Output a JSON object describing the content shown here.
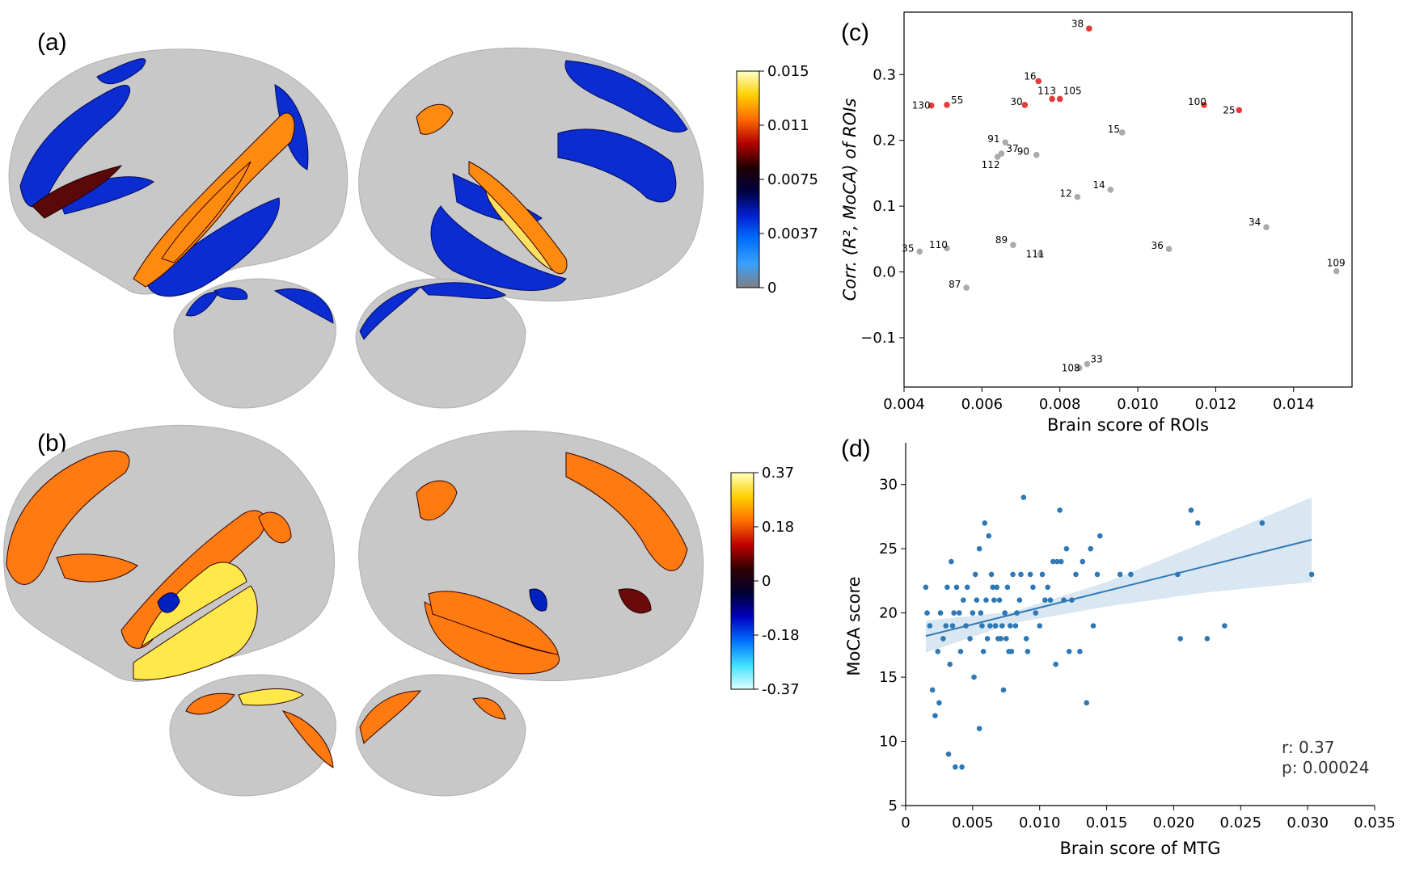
{
  "panels": {
    "a": "(a)",
    "b": "(b)",
    "c": "(c)",
    "d": "(d)"
  },
  "colorbar_a": {
    "ticks": [
      "0.015",
      "0.011",
      "0.0075",
      "0.0037",
      "0"
    ],
    "colors": [
      "#ffffcc",
      "#ffd000",
      "#ff6a00",
      "#b40000",
      "#200000",
      "#000040",
      "#0020d0",
      "#0070ff",
      "#3aa0ff",
      "#808080"
    ]
  },
  "colorbar_b": {
    "ticks": [
      "0.37",
      "0.18",
      "0",
      "-0.18",
      "-0.37"
    ],
    "colors": [
      "#ffffc0",
      "#ffd000",
      "#ff7000",
      "#c00000",
      "#300000",
      "#000030",
      "#0000c0",
      "#0070ff",
      "#40e0ff",
      "#e0ffff"
    ]
  },
  "brain_colors": {
    "surface": "#c8c8c8",
    "a_cool": "#0a2cd0",
    "a_hot": "#ff8a10",
    "b_hot": "#ff7a10",
    "b_bright": "#ffe84a",
    "b_cool": "#0020c0"
  },
  "chart_data": [
    {
      "id": "c",
      "type": "scatter",
      "xlabel": "Brain score of ROIs",
      "ylabel": "Corr. (R², MoCA) of ROIs",
      "xlim": [
        0.004,
        0.0155
      ],
      "ylim": [
        -0.175,
        0.395
      ],
      "xticks": [
        "0.004",
        "0.006",
        "0.008",
        "0.010",
        "0.012",
        "0.014"
      ],
      "xtick_values": [
        0.004,
        0.006,
        0.008,
        0.01,
        0.012,
        0.014
      ],
      "yticks": [
        "−0.1",
        "0.0",
        "0.1",
        "0.2",
        "0.3"
      ],
      "ytick_values": [
        -0.1,
        0.0,
        0.1,
        0.2,
        0.3
      ],
      "highlight_color": "#e8393a",
      "normal_color": "#aaaaaa",
      "points": [
        {
          "label": "38",
          "x": 0.00875,
          "y": 0.37,
          "highlight": true
        },
        {
          "label": "16",
          "x": 0.00745,
          "y": 0.29,
          "highlight": true
        },
        {
          "label": "130",
          "x": 0.0047,
          "y": 0.253,
          "highlight": true
        },
        {
          "label": "55",
          "x": 0.0051,
          "y": 0.254,
          "highlight": true
        },
        {
          "label": "30",
          "x": 0.0071,
          "y": 0.254,
          "highlight": true
        },
        {
          "label": "113",
          "x": 0.0078,
          "y": 0.263,
          "highlight": true
        },
        {
          "label": "105",
          "x": 0.008,
          "y": 0.263,
          "highlight": true
        },
        {
          "label": "100",
          "x": 0.0117,
          "y": 0.254,
          "highlight": true
        },
        {
          "label": "25",
          "x": 0.0126,
          "y": 0.246,
          "highlight": true
        },
        {
          "label": "15",
          "x": 0.0096,
          "y": 0.212,
          "highlight": false
        },
        {
          "label": "91",
          "x": 0.0066,
          "y": 0.197,
          "highlight": false
        },
        {
          "label": "37",
          "x": 0.0065,
          "y": 0.18,
          "highlight": false
        },
        {
          "label": "112",
          "x": 0.0064,
          "y": 0.175,
          "highlight": false
        },
        {
          "label": "90",
          "x": 0.0074,
          "y": 0.178,
          "highlight": false
        },
        {
          "label": "14",
          "x": 0.0093,
          "y": 0.125,
          "highlight": false
        },
        {
          "label": "12",
          "x": 0.00845,
          "y": 0.114,
          "highlight": false
        },
        {
          "label": "34",
          "x": 0.0133,
          "y": 0.068,
          "highlight": false
        },
        {
          "label": "89",
          "x": 0.0068,
          "y": 0.041,
          "highlight": false
        },
        {
          "label": "110",
          "x": 0.0051,
          "y": 0.036,
          "highlight": false
        },
        {
          "label": "35",
          "x": 0.0044,
          "y": 0.031,
          "highlight": false
        },
        {
          "label": "111",
          "x": 0.0075,
          "y": 0.027,
          "highlight": false
        },
        {
          "label": "36",
          "x": 0.0108,
          "y": 0.035,
          "highlight": false
        },
        {
          "label": "109",
          "x": 0.0151,
          "y": 0.001,
          "highlight": false
        },
        {
          "label": "87",
          "x": 0.0056,
          "y": -0.024,
          "highlight": false
        },
        {
          "label": "108",
          "x": 0.0085,
          "y": -0.146,
          "highlight": false
        },
        {
          "label": "33",
          "x": 0.0087,
          "y": -0.14,
          "highlight": false
        }
      ]
    },
    {
      "id": "d",
      "type": "scatter",
      "xlabel": "Brain score of MTG",
      "ylabel": "MoCA score",
      "xlim": [
        0,
        0.035
      ],
      "ylim": [
        5,
        33
      ],
      "xticks": [
        "0",
        "0.005",
        "0.010",
        "0.015",
        "0.020",
        "0.025",
        "0.030",
        "0.035"
      ],
      "xtick_values": [
        0,
        0.005,
        0.01,
        0.015,
        0.02,
        0.025,
        0.03,
        0.035
      ],
      "yticks": [
        "5",
        "10",
        "15",
        "20",
        "25",
        "30"
      ],
      "ytick_values": [
        5,
        10,
        15,
        20,
        25,
        30
      ],
      "point_color": "#2e78b5",
      "fit_line": {
        "x": [
          0.0015,
          0.0303
        ],
        "y": [
          18.2,
          25.7
        ]
      },
      "ci_upper": [
        [
          0.0015,
          19.4
        ],
        [
          0.008,
          20.1
        ],
        [
          0.015,
          22.4
        ],
        [
          0.0225,
          25.6
        ],
        [
          0.0303,
          29.0
        ]
      ],
      "ci_lower": [
        [
          0.0015,
          16.9
        ],
        [
          0.008,
          19.2
        ],
        [
          0.015,
          20.5
        ],
        [
          0.0225,
          21.6
        ],
        [
          0.0303,
          22.4
        ]
      ],
      "annotation": {
        "r": "r: 0.37",
        "p": "p: 0.00024"
      },
      "points": [
        [
          0.0015,
          22
        ],
        [
          0.0016,
          20
        ],
        [
          0.0018,
          19
        ],
        [
          0.002,
          14
        ],
        [
          0.0022,
          12
        ],
        [
          0.0024,
          17
        ],
        [
          0.0025,
          13
        ],
        [
          0.0026,
          20
        ],
        [
          0.0028,
          18
        ],
        [
          0.003,
          19
        ],
        [
          0.0031,
          22
        ],
        [
          0.0032,
          9
        ],
        [
          0.0033,
          16
        ],
        [
          0.0034,
          24
        ],
        [
          0.0035,
          19
        ],
        [
          0.0036,
          20
        ],
        [
          0.0037,
          8
        ],
        [
          0.0038,
          22
        ],
        [
          0.004,
          20
        ],
        [
          0.0041,
          17
        ],
        [
          0.0042,
          8
        ],
        [
          0.0043,
          21
        ],
        [
          0.0045,
          19
        ],
        [
          0.0046,
          22
        ],
        [
          0.0048,
          18
        ],
        [
          0.005,
          20
        ],
        [
          0.0051,
          15
        ],
        [
          0.0052,
          23
        ],
        [
          0.0053,
          21
        ],
        [
          0.0055,
          11
        ],
        [
          0.0055,
          25
        ],
        [
          0.0056,
          20
        ],
        [
          0.0057,
          19
        ],
        [
          0.0058,
          17
        ],
        [
          0.0059,
          27
        ],
        [
          0.006,
          21
        ],
        [
          0.0061,
          18
        ],
        [
          0.0062,
          26
        ],
        [
          0.0063,
          19
        ],
        [
          0.0064,
          23
        ],
        [
          0.0065,
          22
        ],
        [
          0.0066,
          21
        ],
        [
          0.0067,
          19
        ],
        [
          0.0068,
          22
        ],
        [
          0.0069,
          18
        ],
        [
          0.007,
          21
        ],
        [
          0.0071,
          18
        ],
        [
          0.0072,
          19
        ],
        [
          0.0073,
          14
        ],
        [
          0.0074,
          20
        ],
        [
          0.0075,
          18
        ],
        [
          0.0076,
          22
        ],
        [
          0.0077,
          17
        ],
        [
          0.0078,
          19
        ],
        [
          0.0079,
          17
        ],
        [
          0.008,
          23
        ],
        [
          0.0082,
          19
        ],
        [
          0.0083,
          20
        ],
        [
          0.0085,
          21
        ],
        [
          0.0086,
          23
        ],
        [
          0.0088,
          29
        ],
        [
          0.009,
          18
        ],
        [
          0.0091,
          17
        ],
        [
          0.0093,
          23
        ],
        [
          0.0095,
          22
        ],
        [
          0.0097,
          20
        ],
        [
          0.01,
          19
        ],
        [
          0.0102,
          23
        ],
        [
          0.0104,
          21
        ],
        [
          0.0106,
          22
        ],
        [
          0.0108,
          21
        ],
        [
          0.011,
          24
        ],
        [
          0.0112,
          16
        ],
        [
          0.0113,
          24
        ],
        [
          0.0115,
          28
        ],
        [
          0.0116,
          24
        ],
        [
          0.0118,
          21
        ],
        [
          0.012,
          25
        ],
        [
          0.0122,
          17
        ],
        [
          0.0124,
          21
        ],
        [
          0.0127,
          23
        ],
        [
          0.013,
          17
        ],
        [
          0.0132,
          24
        ],
        [
          0.0135,
          13
        ],
        [
          0.0138,
          25
        ],
        [
          0.014,
          19
        ],
        [
          0.0143,
          23
        ],
        [
          0.0145,
          26
        ],
        [
          0.016,
          23
        ],
        [
          0.0168,
          23
        ],
        [
          0.0203,
          23
        ],
        [
          0.0205,
          18
        ],
        [
          0.0213,
          28
        ],
        [
          0.0218,
          27
        ],
        [
          0.0225,
          18
        ],
        [
          0.0238,
          19
        ],
        [
          0.0266,
          27
        ],
        [
          0.0303,
          23
        ]
      ]
    }
  ]
}
